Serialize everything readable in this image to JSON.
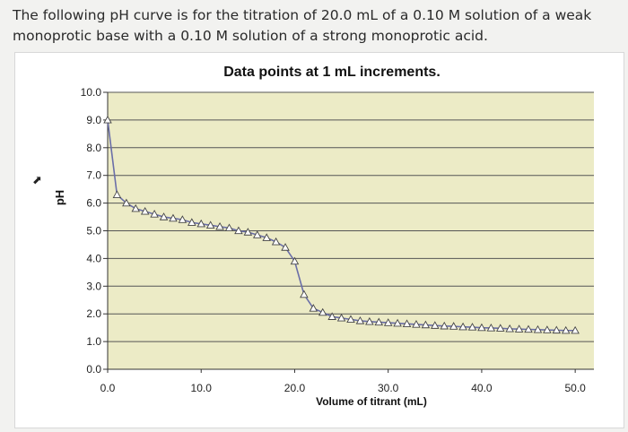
{
  "question": {
    "text": "The following pH curve is for the titration of 20.0 mL of a 0.10 M solution of a weak monoprotic base with a 0.10 M solution of a strong monoprotic acid."
  },
  "chart_data": {
    "type": "line",
    "title": "Data points at 1 mL increments.",
    "xlabel": "Volume of titrant (mL)",
    "ylabel": "pH",
    "xlim": [
      0,
      52
    ],
    "ylim": [
      0,
      10
    ],
    "x_ticks": [
      "0.0",
      "10.0",
      "20.0",
      "30.0",
      "40.0",
      "50.0"
    ],
    "x_tick_values": [
      0,
      10,
      20,
      30,
      40,
      50
    ],
    "y_ticks": [
      "0.0",
      "1.0",
      "2.0",
      "3.0",
      "4.0",
      "5.0",
      "6.0",
      "7.0",
      "8.0",
      "9.0",
      "10.0"
    ],
    "y_tick_values": [
      0,
      1,
      2,
      3,
      4,
      5,
      6,
      7,
      8,
      9,
      10
    ],
    "grid": "horizontal",
    "background_color": "#ecebc6",
    "line_color": "#6a6ea8",
    "marker": "triangle",
    "series": [
      {
        "x": [
          0,
          1,
          2,
          3,
          4,
          5,
          6,
          7,
          8,
          9,
          10,
          11,
          12,
          13,
          14,
          15,
          16,
          17,
          18,
          19,
          20,
          21,
          22,
          23,
          24,
          25,
          26,
          27,
          28,
          29,
          30,
          31,
          32,
          33,
          34,
          35,
          36,
          37,
          38,
          39,
          40,
          41,
          42,
          43,
          44,
          45,
          46,
          47,
          48,
          49,
          50
        ],
        "values": [
          9.0,
          6.3,
          6.0,
          5.8,
          5.7,
          5.6,
          5.5,
          5.45,
          5.4,
          5.3,
          5.25,
          5.2,
          5.15,
          5.1,
          5.0,
          4.95,
          4.85,
          4.75,
          4.6,
          4.4,
          3.9,
          2.7,
          2.2,
          2.05,
          1.9,
          1.85,
          1.8,
          1.75,
          1.72,
          1.7,
          1.68,
          1.66,
          1.64,
          1.62,
          1.6,
          1.58,
          1.56,
          1.55,
          1.53,
          1.52,
          1.5,
          1.49,
          1.48,
          1.46,
          1.45,
          1.44,
          1.43,
          1.42,
          1.41,
          1.4,
          1.4
        ]
      }
    ]
  }
}
